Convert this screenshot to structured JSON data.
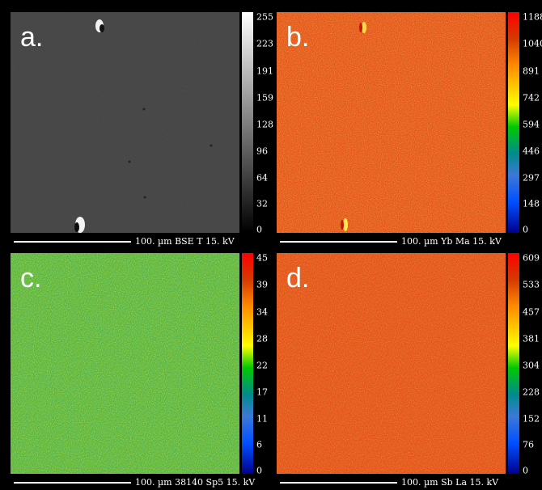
{
  "panels": [
    {
      "letter": "a.",
      "scale_label": "100. µm  BSE T  15. kV",
      "ticks": [
        "255",
        "223",
        "191",
        "159",
        "128",
        "96",
        "64",
        "32",
        "0"
      ],
      "colorbar": "grayscale",
      "base_color": "#424242"
    },
    {
      "letter": "b.",
      "scale_label": "100. µm  Yb Ma  15. kV",
      "ticks": [
        "1188",
        "1040",
        "891",
        "742",
        "594",
        "446",
        "297",
        "148",
        "0"
      ],
      "colorbar": "spectrum",
      "base_color": "#e4561e"
    },
    {
      "letter": "c.",
      "scale_label": "100. µm  38140 Sp5  15. kV",
      "ticks": [
        "45",
        "39",
        "34",
        "28",
        "22",
        "17",
        "11",
        "6",
        "0"
      ],
      "colorbar": "spectrum",
      "base_color": "#5cb838"
    },
    {
      "letter": "d.",
      "scale_label": "100. µm  Sb La  15. kV",
      "ticks": [
        "609",
        "533",
        "457",
        "381",
        "304",
        "228",
        "152",
        "76",
        "0"
      ],
      "colorbar": "spectrum",
      "base_color": "#e4561e"
    }
  ],
  "colors": {
    "spectrum": [
      "#ff0000",
      "#d43a00",
      "#ff8a00",
      "#ffd000",
      "#ffff00",
      "#00c800",
      "#008c8c",
      "#3c78d8",
      "#0050ff",
      "#00008c"
    ],
    "grayscale_top": "#ffffff",
    "grayscale_bottom": "#000000"
  }
}
